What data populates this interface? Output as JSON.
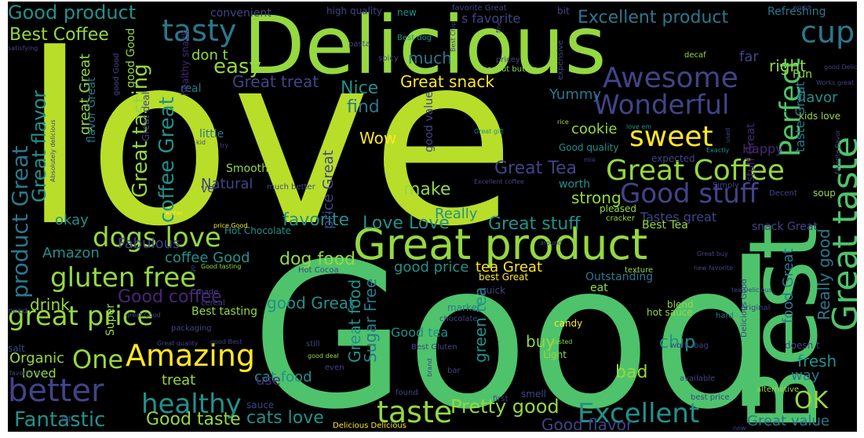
{
  "title": "",
  "palette": {
    "background": "#000000",
    "lime": "#b8de29",
    "green": "#4ec36b",
    "light_green": "#95d840",
    "teal": "#21918c",
    "blue_teal": "#2a788e",
    "slate": "#414487",
    "purple": "#482677",
    "yellow": "#fde725"
  },
  "words": [
    "love",
    "Good",
    "Delicious",
    "Best",
    "Great product",
    "Great taste",
    "Great Coffee",
    "Awesome",
    "Wonderful",
    "Perfect",
    "tasty",
    "cup",
    "sweet",
    "Good stuff",
    "dogs love",
    "gluten free",
    "great price",
    "better",
    "healthy",
    "Amazing",
    "One",
    "taste",
    "Excellent",
    "OK",
    "Fantastic",
    "Good taste",
    "cats love",
    "Pretty good",
    "Good product",
    "Best Coffee",
    "product Great",
    "Great flavor",
    "great Great",
    "Great tasting",
    "coffee Great",
    "easy",
    "Nice",
    "find",
    "Wow",
    "Great Tea",
    "make",
    "favorite",
    "Love Love",
    "Great stuff",
    "Great treat",
    "Great snack",
    "Yummy",
    "cookie",
    "strong",
    "worth",
    "flavor",
    "Fabulous",
    "okay",
    "Amazon",
    "coffee Good",
    "dog food",
    "good price",
    "tea Great",
    "Good coffee",
    "drink",
    "good Great",
    "Great food",
    "Sugar Free",
    "Good tea",
    "buy",
    "green tea",
    "chip",
    "bad",
    "cat food",
    "Good flavor",
    "Great value",
    "Really good",
    "food Great",
    "fresh",
    "way",
    "Organic",
    "loved",
    "treat",
    "use",
    "Super",
    "Excellent product",
    "s favorite",
    "much",
    "don t",
    "far",
    "right",
    "Refreshing",
    "Natural",
    "Smooth",
    "little",
    "real",
    "ve",
    "price Great",
    "Really",
    "Tastes great",
    "Best Tea",
    "Hot Chocolate",
    "Happy",
    "Good quality",
    "kids love",
    "Fun",
    "taste Great",
    "stuff Great",
    "convenient",
    "high quality",
    "new",
    "bit",
    "pasta",
    "Best dog",
    "peanut butter",
    "pricey",
    "expensive",
    "decaf",
    "world",
    "good Delicious",
    "Works great",
    "satisfying",
    "spicy",
    "good value",
    "flavor Great",
    "healthy snack",
    "good Good",
    "Great deal",
    "Absolutely delicious",
    "water",
    "pleased",
    "cracker",
    "expected",
    "snack Great",
    "soup",
    "Decent",
    "Simply",
    "Great gift",
    "Excellent coffee",
    "rice",
    "love em",
    "mix",
    "try",
    "kid",
    "Best tasting",
    "made",
    "quick",
    "market",
    "chocolate",
    "eat",
    "candy",
    "best Great",
    "Outstanding",
    "texture",
    "Hot Cocoa",
    "price Good",
    "Good tasting",
    "great Good",
    "need",
    "salt",
    "favorite tea",
    "good deal",
    "still",
    "even",
    "Great quality",
    "good Best",
    "Best Gluten",
    "brand",
    "bar",
    "first",
    "smell",
    "found",
    "tasted",
    "Light",
    "blend",
    "hard",
    "tea Delicious",
    "Delicious Good",
    "alternative",
    "available",
    "best price",
    "work",
    "now",
    "doesn t",
    "Delicious Delicious",
    "sauce",
    "lot",
    "packaging",
    "cereal",
    "original",
    "new favorite",
    "Great buy",
    "hot sauce",
    "bag",
    "much better",
    "go",
    "around",
    "favorite Great",
    "Best Chip",
    "fine",
    "used",
    "Exactly",
    "favorite flavor",
    "good Good"
  ]
}
